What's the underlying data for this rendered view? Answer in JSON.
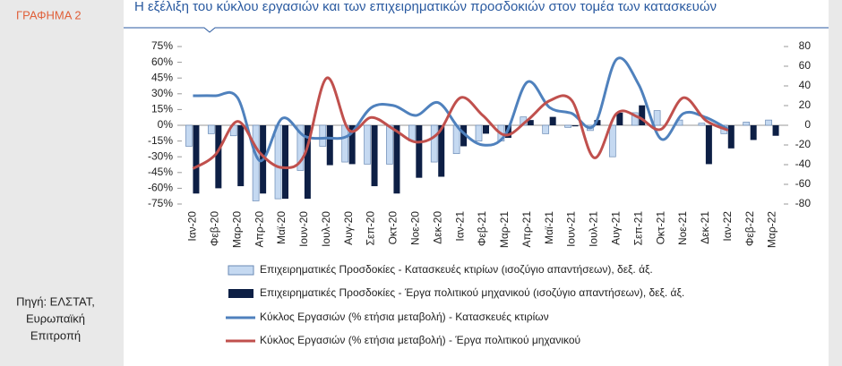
{
  "label": "ΓΡΑΦΗΜΑ 2",
  "source": [
    "Πηγή: ΕΛΣΤΑΤ,",
    "Ευρωπαϊκή",
    "Επιτροπή"
  ],
  "chart_data": {
    "type": "combo",
    "title": "Η εξέλιξη του κύκλου εργασιών και των επιχειρηματικών προσδοκιών στον τομέα των κατασκευών",
    "categories": [
      "Ιαν-20",
      "Φεβ-20",
      "Μαρ-20",
      "Απρ-20",
      "Μαϊ-20",
      "Ιουν-20",
      "Ιουλ-20",
      "Αυγ-20",
      "Σεπ-20",
      "Οκτ-20",
      "Νοε-20",
      "Δεκ-20",
      "Ιαν-21",
      "Φεβ-21",
      "Μαρ-21",
      "Απρ-21",
      "Μαϊ-21",
      "Ιουν-21",
      "Ιουλ-21",
      "Αυγ-21",
      "Σεπ-21",
      "Οκτ-21",
      "Νοε-21",
      "Δεκ-21",
      "Ιαν-22",
      "Φεβ-22",
      "Μαρ-22"
    ],
    "series": [
      {
        "name": "Επιχειρηματικές Προσδοκίες - Κατασκευές κτιρίων (ισοζύγιο απαντήσεων), δεξ. άξ.",
        "kind": "bar",
        "color": "#c5d9f1",
        "values": [
          -20,
          -8,
          -10,
          -72,
          -70,
          -43,
          -20,
          -35,
          -37,
          -37,
          -15,
          -35,
          -27,
          -15,
          -15,
          8,
          -8,
          -2,
          -5,
          -30,
          12,
          14,
          5,
          2,
          -8,
          3,
          5
        ]
      },
      {
        "name": "Επιχειρηματικές Προσδοκίες - Έργα πολιτικού μηχανικού (ισοζύγιο απαντήσεων), δεξ. άξ.",
        "kind": "bar",
        "color": "#0d1f45",
        "values": [
          -65,
          -60,
          -58,
          -65,
          -70,
          -70,
          -38,
          -37,
          -58,
          -65,
          -50,
          -49,
          -20,
          -8,
          -12,
          5,
          8,
          -1,
          5,
          12,
          19,
          null,
          null,
          -37,
          -22,
          -14,
          -10
        ]
      },
      {
        "name": "Κύκλος Εργασιών (% ετήσια μεταβολή) - Κατασκευές κτιρίων",
        "kind": "line",
        "axis": "y2",
        "color": "#4f81bd",
        "values": [
          30,
          30,
          28,
          -36,
          7,
          -11,
          -13,
          -10,
          18,
          20,
          10,
          23,
          -5,
          -20,
          -10,
          44,
          18,
          12,
          0,
          67,
          41,
          -14,
          12,
          8,
          -4,
          null,
          null
        ]
      },
      {
        "name": "Κύκλος Εργασιών (% ετήσια μεταβολή) - Έργα πολιτικού μηχανικού",
        "kind": "line",
        "axis": "y2",
        "color": "#c0504d",
        "values": [
          -44,
          -30,
          4,
          -28,
          -43,
          -30,
          48,
          -5,
          8,
          -4,
          -17,
          -8,
          28,
          10,
          -10,
          5,
          25,
          25,
          -33,
          12,
          8,
          -4,
          28,
          5,
          -5,
          null,
          null
        ]
      }
    ],
    "ylim": [
      -75,
      75
    ],
    "yticks": [
      {
        "value": 75,
        "label": "75%"
      },
      {
        "value": 60,
        "label": "60%"
      },
      {
        "value": 45,
        "label": "45%"
      },
      {
        "value": 30,
        "label": "30%"
      },
      {
        "value": 15,
        "label": "15%"
      },
      {
        "value": 0,
        "label": "0%"
      },
      {
        "value": -15,
        "label": "-15%"
      },
      {
        "value": -30,
        "label": "-30%"
      },
      {
        "value": -45,
        "label": "-45%"
      },
      {
        "value": -60,
        "label": "-60%"
      },
      {
        "value": -75,
        "label": "-75%"
      }
    ],
    "y2lim": [
      -80,
      80
    ],
    "y2ticks": [
      80,
      60,
      40,
      20,
      0,
      -20,
      -40,
      -60,
      -80
    ],
    "grid": false
  }
}
